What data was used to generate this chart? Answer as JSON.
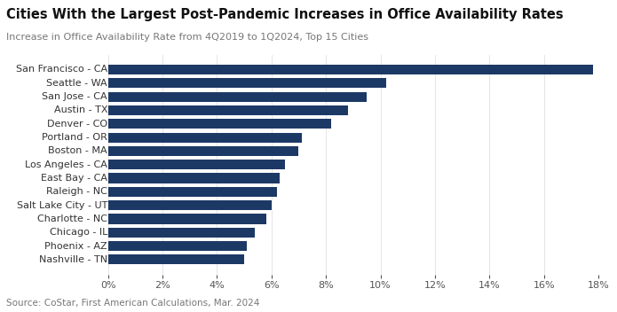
{
  "title": "Cities With the Largest Post-Pandemic Increases in Office Availability Rates",
  "subtitle": "Increase in Office Availability Rate from 4Q2019 to 1Q2024, Top 15 Cities",
  "source": "Source: CoStar, First American Calculations, Mar. 2024",
  "cities": [
    "Nashville - TN",
    "Phoenix - AZ",
    "Chicago - IL",
    "Charlotte - NC",
    "Salt Lake City - UT",
    "Raleigh - NC",
    "East Bay - CA",
    "Los Angeles - CA",
    "Boston - MA",
    "Portland - OR",
    "Denver - CO",
    "Austin - TX",
    "San Jose - CA",
    "Seattle - WA",
    "San Francisco - CA"
  ],
  "values": [
    0.05,
    0.051,
    0.054,
    0.058,
    0.06,
    0.062,
    0.063,
    0.065,
    0.07,
    0.071,
    0.082,
    0.088,
    0.095,
    0.102,
    0.178
  ],
  "bar_color": "#1c3966",
  "xlim": [
    0,
    0.18
  ],
  "xticks": [
    0.0,
    0.02,
    0.04,
    0.06,
    0.08,
    0.1,
    0.12,
    0.14,
    0.16,
    0.18
  ],
  "background_color": "#ffffff",
  "title_fontsize": 10.5,
  "subtitle_fontsize": 8,
  "source_fontsize": 7.5,
  "label_fontsize": 8,
  "tick_fontsize": 8
}
